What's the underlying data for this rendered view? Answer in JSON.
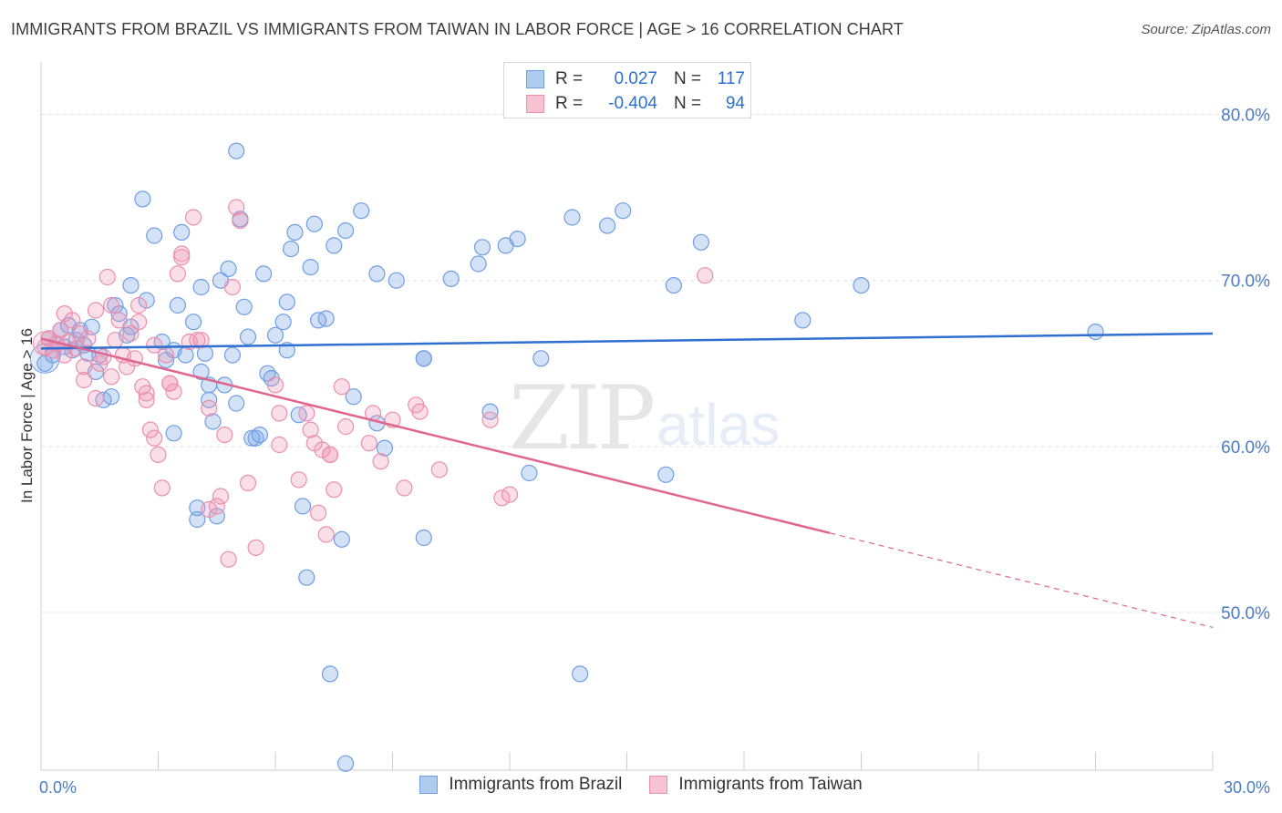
{
  "title": "IMMIGRANTS FROM BRAZIL VS IMMIGRANTS FROM TAIWAN IN LABOR FORCE | AGE > 16 CORRELATION CHART",
  "source": "Source: ZipAtlas.com",
  "watermark": {
    "zip": "ZIP",
    "atlas": "atlas"
  },
  "legend": {
    "r_label": "R =",
    "n_label": "N =",
    "rows": [
      {
        "r": "0.027",
        "n": "117",
        "fill": "#aecbf0",
        "stroke": "#6f9de0"
      },
      {
        "r": "-0.404",
        "n": "94",
        "fill": "#f7c3d3",
        "stroke": "#ea8fae"
      }
    ]
  },
  "colors": {
    "brazil": "#6f9ee3",
    "brazil_fill": "rgba(120,165,230,0.32)",
    "taiwan": "#ea8fae",
    "taiwan_fill": "rgba(240,150,180,0.30)",
    "brazil_line": "#2f6fd0",
    "taiwan_line": "#e0658f"
  },
  "chart_data": {
    "type": "scatter",
    "title": "IMMIGRANTS FROM BRAZIL VS IMMIGRANTS FROM TAIWAN IN LABOR FORCE | AGE > 16 CORRELATION CHART",
    "xlabel": "",
    "ylabel": "In Labor Force | Age > 16",
    "xlim": [
      0,
      30
    ],
    "ylim": [
      40.5,
      82.5
    ],
    "x_tick_labels": [
      "0.0%",
      "30.0%"
    ],
    "y_ticks": [
      50,
      60,
      70,
      80
    ],
    "y_tick_labels": [
      "50.0%",
      "60.0%",
      "70.0%",
      "80.0%"
    ],
    "grid": true,
    "legend_position": "top-center",
    "series": [
      {
        "name": "Immigrants from Brazil",
        "r": 0.027,
        "n": 117,
        "trend": {
          "x": [
            0,
            30
          ],
          "y": [
            65.9,
            66.8
          ],
          "solid_to": 30
        },
        "points": [
          [
            0.1,
            65
          ],
          [
            0.2,
            66.5
          ],
          [
            0.3,
            65.5
          ],
          [
            0.4,
            66.2
          ],
          [
            0.5,
            67
          ],
          [
            0.6,
            66
          ],
          [
            0.7,
            67.3
          ],
          [
            0.8,
            65.8
          ],
          [
            0.9,
            66.4
          ],
          [
            1.0,
            67
          ],
          [
            1.1,
            66.1
          ],
          [
            1.2,
            65.6
          ],
          [
            1.3,
            67.2
          ],
          [
            1.4,
            64.5
          ],
          [
            1.5,
            65.5
          ],
          [
            1.6,
            62.8
          ],
          [
            1.8,
            63
          ],
          [
            1.9,
            68.5
          ],
          [
            2.0,
            68
          ],
          [
            2.2,
            66.7
          ],
          [
            2.3,
            67.2
          ],
          [
            2.3,
            69.7
          ],
          [
            2.6,
            74.9
          ],
          [
            2.7,
            68.8
          ],
          [
            2.9,
            72.7
          ],
          [
            3.1,
            66.3
          ],
          [
            3.2,
            65.2
          ],
          [
            3.4,
            65.8
          ],
          [
            3.4,
            60.8
          ],
          [
            3.5,
            68.5
          ],
          [
            3.6,
            72.9
          ],
          [
            3.7,
            65.5
          ],
          [
            3.9,
            67.5
          ],
          [
            4.0,
            55.6
          ],
          [
            4.0,
            56.3
          ],
          [
            4.1,
            69.6
          ],
          [
            4.1,
            64.5
          ],
          [
            4.2,
            65.6
          ],
          [
            4.3,
            63.7
          ],
          [
            4.3,
            62.8
          ],
          [
            4.4,
            61.5
          ],
          [
            4.5,
            55.8
          ],
          [
            4.6,
            70
          ],
          [
            4.7,
            63.7
          ],
          [
            4.8,
            70.7
          ],
          [
            4.9,
            65.5
          ],
          [
            5.0,
            62.6
          ],
          [
            5.0,
            77.8
          ],
          [
            5.1,
            73.7
          ],
          [
            5.2,
            68.4
          ],
          [
            5.3,
            66.6
          ],
          [
            5.4,
            60.5
          ],
          [
            5.5,
            60.5
          ],
          [
            5.6,
            60.7
          ],
          [
            5.7,
            70.4
          ],
          [
            5.8,
            64.4
          ],
          [
            5.9,
            64.1
          ],
          [
            6.0,
            66.7
          ],
          [
            6.2,
            67.5
          ],
          [
            6.3,
            65.8
          ],
          [
            6.3,
            68.7
          ],
          [
            6.4,
            71.9
          ],
          [
            6.5,
            72.9
          ],
          [
            6.6,
            61.9
          ],
          [
            6.7,
            56.4
          ],
          [
            6.8,
            52.1
          ],
          [
            6.9,
            70.8
          ],
          [
            7.0,
            73.4
          ],
          [
            7.1,
            67.6
          ],
          [
            7.3,
            67.7
          ],
          [
            7.4,
            46.3
          ],
          [
            7.5,
            72.1
          ],
          [
            7.7,
            54.4
          ],
          [
            7.8,
            73
          ],
          [
            7.8,
            40.9
          ],
          [
            8.0,
            63
          ],
          [
            8.2,
            74.2
          ],
          [
            8.6,
            61.4
          ],
          [
            8.6,
            70.4
          ],
          [
            8.8,
            59.9
          ],
          [
            9.1,
            70
          ],
          [
            9.8,
            65.3
          ],
          [
            9.8,
            65.3
          ],
          [
            9.8,
            54.5
          ],
          [
            10.5,
            70.1
          ],
          [
            11.2,
            71
          ],
          [
            11.3,
            72
          ],
          [
            11.5,
            62.1
          ],
          [
            11.9,
            72.1
          ],
          [
            12.2,
            72.5
          ],
          [
            12.5,
            58.4
          ],
          [
            12.8,
            65.3
          ],
          [
            13.6,
            73.8
          ],
          [
            13.8,
            46.3
          ],
          [
            14.5,
            73.3
          ],
          [
            14.9,
            74.2
          ],
          [
            16.0,
            58.3
          ],
          [
            16.2,
            69.7
          ],
          [
            16.9,
            72.3
          ],
          [
            19.5,
            67.6
          ],
          [
            21.0,
            69.7
          ],
          [
            27.0,
            66.9
          ]
        ]
      },
      {
        "name": "Immigrants from Taiwan",
        "r": -0.404,
        "n": 94,
        "trend": {
          "x": [
            0,
            30
          ],
          "y": [
            66.5,
            49.1
          ],
          "solid_to": 20.2
        },
        "points": [
          [
            0.1,
            66
          ],
          [
            0.2,
            66.5
          ],
          [
            0.3,
            65.8
          ],
          [
            0.4,
            66.2
          ],
          [
            0.5,
            67
          ],
          [
            0.6,
            65.5
          ],
          [
            0.6,
            68
          ],
          [
            0.7,
            66.3
          ],
          [
            0.8,
            67.6
          ],
          [
            0.9,
            65.9
          ],
          [
            1.0,
            66.8
          ],
          [
            1.1,
            64
          ],
          [
            1.1,
            64.8
          ],
          [
            1.2,
            66.5
          ],
          [
            1.4,
            68.2
          ],
          [
            1.4,
            62.9
          ],
          [
            1.5,
            65
          ],
          [
            1.6,
            65.4
          ],
          [
            1.7,
            70.2
          ],
          [
            1.8,
            68.5
          ],
          [
            1.8,
            64.2
          ],
          [
            1.9,
            66.4
          ],
          [
            2.0,
            67.6
          ],
          [
            2.1,
            65.5
          ],
          [
            2.2,
            64.8
          ],
          [
            2.3,
            66.8
          ],
          [
            2.4,
            65.3
          ],
          [
            2.5,
            67.5
          ],
          [
            2.5,
            68.5
          ],
          [
            2.6,
            63.6
          ],
          [
            2.7,
            63.2
          ],
          [
            2.7,
            62.8
          ],
          [
            2.8,
            61
          ],
          [
            2.9,
            66.1
          ],
          [
            2.9,
            60.5
          ],
          [
            3.0,
            59.5
          ],
          [
            3.1,
            57.5
          ],
          [
            3.2,
            65.5
          ],
          [
            3.3,
            63.8
          ],
          [
            3.3,
            63.8
          ],
          [
            3.4,
            63.3
          ],
          [
            3.5,
            70.4
          ],
          [
            3.6,
            71.6
          ],
          [
            3.6,
            71.4
          ],
          [
            3.8,
            66.3
          ],
          [
            3.9,
            73.8
          ],
          [
            4.0,
            66.4
          ],
          [
            4.1,
            66.4
          ],
          [
            4.3,
            62.3
          ],
          [
            4.3,
            56.2
          ],
          [
            4.5,
            56.4
          ],
          [
            4.6,
            57
          ],
          [
            4.7,
            60.7
          ],
          [
            4.8,
            53.2
          ],
          [
            4.9,
            69.6
          ],
          [
            5.0,
            74.4
          ],
          [
            5.1,
            73.6
          ],
          [
            5.3,
            57.8
          ],
          [
            5.5,
            53.9
          ],
          [
            6.0,
            63.7
          ],
          [
            6.1,
            60.1
          ],
          [
            6.1,
            62
          ],
          [
            6.6,
            58
          ],
          [
            6.8,
            62
          ],
          [
            6.9,
            61
          ],
          [
            7.0,
            60.2
          ],
          [
            7.1,
            56
          ],
          [
            7.2,
            59.8
          ],
          [
            7.3,
            54.7
          ],
          [
            7.4,
            59.5
          ],
          [
            7.4,
            59.5
          ],
          [
            7.5,
            57.4
          ],
          [
            7.7,
            63.6
          ],
          [
            7.8,
            61.2
          ],
          [
            8.4,
            60.2
          ],
          [
            8.5,
            62
          ],
          [
            8.7,
            59.1
          ],
          [
            9.0,
            61.6
          ],
          [
            9.3,
            57.5
          ],
          [
            9.6,
            62.5
          ],
          [
            9.7,
            62.1
          ],
          [
            10.2,
            58.6
          ],
          [
            11.5,
            61.6
          ],
          [
            11.8,
            56.9
          ],
          [
            12.0,
            57.1
          ],
          [
            17.0,
            70.3
          ]
        ]
      }
    ]
  },
  "bottom_legend": [
    {
      "label": "Immigrants from Brazil",
      "fill": "#aecbf0",
      "stroke": "#6f9de0"
    },
    {
      "label": "Immigrants from Taiwan",
      "fill": "#f7c3d3",
      "stroke": "#ea8fae"
    }
  ]
}
